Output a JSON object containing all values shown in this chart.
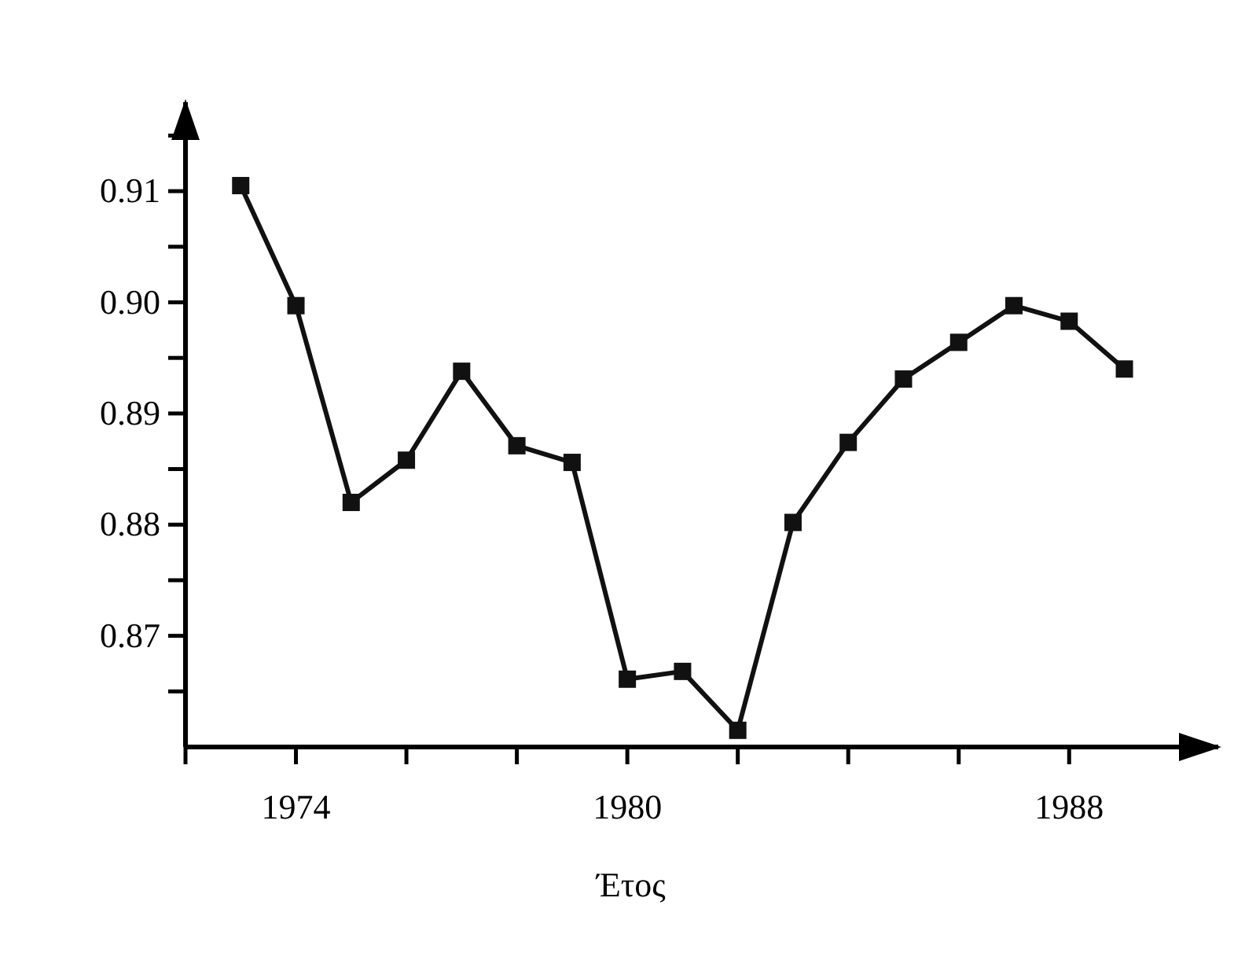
{
  "chart_data": {
    "type": "line",
    "xlabel": "Έτος",
    "x": [
      1973,
      1974,
      1975,
      1976,
      1977,
      1978,
      1979,
      1980,
      1981,
      1982,
      1983,
      1984,
      1985,
      1986,
      1987,
      1988,
      1989
    ],
    "series": [
      {
        "color": "#111111",
        "values": [
          0.9105,
          0.8997,
          0.882,
          0.8858,
          0.8938,
          0.8871,
          0.8856,
          0.8661,
          0.8668,
          0.8615,
          0.8802,
          0.8874,
          0.8931,
          0.8964,
          0.8997,
          0.8983,
          0.894
        ]
      }
    ],
    "xlim": [
      1972,
      1990.7
    ],
    "ylim": [
      0.86,
      0.918
    ],
    "xticks": [
      {
        "value": 1972,
        "label": null
      },
      1974,
      {
        "value": 1976,
        "label": null
      },
      {
        "value": 1978,
        "label": null
      },
      1980,
      {
        "value": 1982,
        "label": null
      },
      {
        "value": 1984,
        "label": null
      },
      {
        "value": 1986,
        "label": null
      },
      1988
    ],
    "yticks": [
      {
        "value": 0.865,
        "label": null
      },
      0.87,
      {
        "value": 0.875,
        "label": null
      },
      0.88,
      {
        "value": 0.885,
        "label": null
      },
      0.89,
      {
        "value": 0.895,
        "label": null
      },
      {
        "value": 0.9,
        "label": "0.90"
      },
      {
        "value": 0.905,
        "label": null
      },
      0.91,
      {
        "value": 0.915,
        "label": null
      }
    ],
    "marker": "square",
    "line_style": "solid",
    "grid": false
  }
}
